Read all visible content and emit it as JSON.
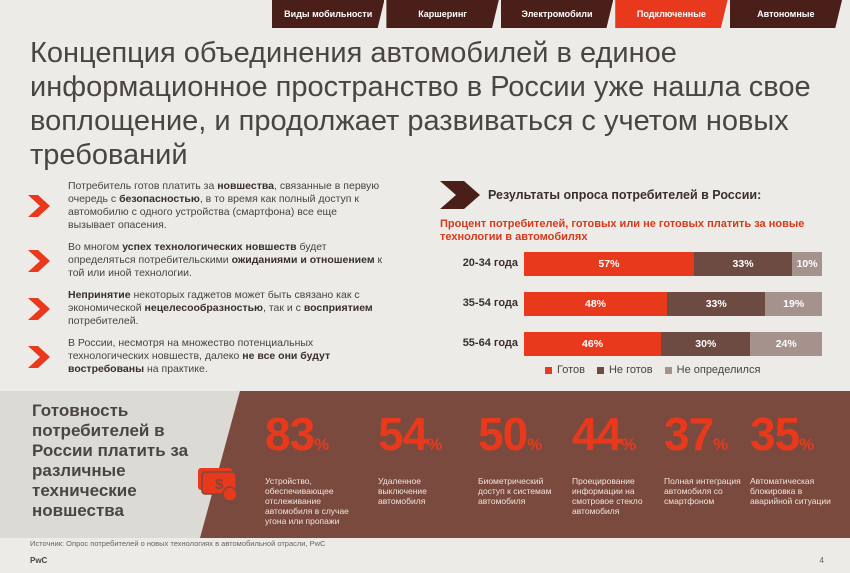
{
  "tabs": [
    {
      "label": "Виды мобильности",
      "active": false
    },
    {
      "label": "Каршеринг",
      "active": false
    },
    {
      "label": "Электромобили",
      "active": false
    },
    {
      "label": "Подключенные",
      "active": true
    },
    {
      "label": "Автономные",
      "active": false
    }
  ],
  "title": "Концепция объединения автомобилей в единое информационное пространство в России уже нашла свое воплощение, и продолжает развиваться с учетом новых требований",
  "bullets": [
    [
      {
        "t": "Потребитель готов платить за ",
        "b": false
      },
      {
        "t": "новшества",
        "b": true
      },
      {
        "t": ", связанные в первую очередь с ",
        "b": false
      },
      {
        "t": "безопасностью",
        "b": true
      },
      {
        "t": ", в то время как полный доступ к автомобилю с одного устройства (смартфона) все еще вызывает опасения.",
        "b": false
      }
    ],
    [
      {
        "t": "Во многом ",
        "b": false
      },
      {
        "t": "успех технологических новшеств",
        "b": true
      },
      {
        "t": " будет определяться потребительскими ",
        "b": false
      },
      {
        "t": "ожиданиями и отношением",
        "b": true
      },
      {
        "t": " к той или иной технологии.",
        "b": false
      }
    ],
    [
      {
        "t": "Непринятие",
        "b": true
      },
      {
        "t": " некоторых гаджетов может быть связано как с экономической ",
        "b": false
      },
      {
        "t": "нецелесообразностью",
        "b": true
      },
      {
        "t": ", так и с ",
        "b": false
      },
      {
        "t": "восприятием",
        "b": true
      },
      {
        "t": " потребителей.",
        "b": false
      }
    ],
    [
      {
        "t": "В России, несмотря на множество потенциальных технологических новшеств, далеко ",
        "b": false
      },
      {
        "t": "не все они будут востребованы",
        "b": true
      },
      {
        "t": " на практике.",
        "b": false
      }
    ]
  ],
  "survey": {
    "heading": "Результаты опроса потребителей в России:",
    "subheading": "Процент потребителей, готовых или не готовых платить за новые  технологии в автомобилях"
  },
  "colors": {
    "accent": "#e8391d",
    "dark": "#6e4b42",
    "light": "#a5928d",
    "band": "#7a4a3e"
  },
  "chart_data": {
    "type": "bar",
    "stacked": true,
    "orientation": "horizontal",
    "categories": [
      "20-34 года",
      "35-54 года",
      "55-64 года"
    ],
    "series": [
      {
        "name": "Готов",
        "values": [
          57,
          48,
          46
        ],
        "labels": [
          "57%",
          "48%",
          "46%"
        ],
        "color": "#e8391d"
      },
      {
        "name": "Не готов",
        "values": [
          33,
          33,
          30
        ],
        "labels": [
          "33%",
          "33%",
          "30%"
        ],
        "color": "#6e4b42"
      },
      {
        "name": "Не определился",
        "values": [
          10,
          19,
          24
        ],
        "labels": [
          "10%",
          "19%",
          "24%"
        ],
        "color": "#a5928d"
      }
    ],
    "legend_position": "bottom",
    "xlim": [
      0,
      100
    ]
  },
  "readiness": {
    "title": "Готовность потребителей в России платить за различные технические новшества",
    "stats": [
      {
        "value": "83",
        "unit": "%",
        "desc": "Устройство, обеспечивающее отслеживание автомобиля в случае угона или пропажи"
      },
      {
        "value": "54",
        "unit": "%",
        "desc": "Удаленное выключение автомобиля"
      },
      {
        "value": "50",
        "unit": "%",
        "desc": "Биометрический доступ к системам автомобиля"
      },
      {
        "value": "44",
        "unit": "%",
        "desc": "Проецирование информации на смотровое стекло автомобиля"
      },
      {
        "value": "37",
        "unit": "%",
        "desc": "Полная интеграция автомобиля со смартфоном"
      },
      {
        "value": "35",
        "unit": "%",
        "desc": "Автоматическая блокировка в аварийной ситуации"
      }
    ]
  },
  "footer": {
    "source": "Источник: Опрос потребителей о новых технологиях в автомобильной отрасли, PwC",
    "brand": "PwC",
    "page": "4"
  }
}
